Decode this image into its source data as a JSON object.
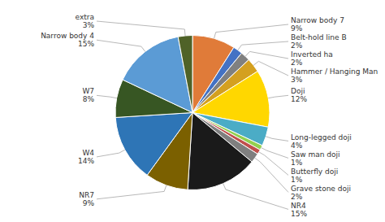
{
  "chart_data": {
    "type": "pie",
    "categories": [
      "Narrow body 7",
      "Belt-hold line B",
      "Inverted ha",
      "Hammer / Hanging Man",
      "Doji",
      "Long-legged doji",
      "Saw man doji",
      "Butterfly doji",
      "Grave stone doji",
      "NR4",
      "NR7",
      "W4",
      "W7",
      "Narrow body 4",
      "extra"
    ],
    "values": [
      9,
      2,
      2,
      3,
      12,
      4,
      1,
      1,
      2,
      15,
      9,
      14,
      8,
      15,
      3
    ],
    "value_labels": [
      "9%",
      "2%",
      "2%",
      "3%",
      "12%",
      "4%",
      "1%",
      "1%",
      "2%",
      "15%",
      "9%",
      "14%",
      "8%",
      "15%",
      "3%"
    ],
    "colors": [
      "#E07B39",
      "#4472C4",
      "#808080",
      "#D4A020",
      "#FFD700",
      "#4BACC6",
      "#92D050",
      "#C0504D",
      "#7F7F7F",
      "#1A1A1A",
      "#7B6000",
      "#2E75B6",
      "#375623",
      "#5B9BD5",
      "#4F6228"
    ]
  }
}
